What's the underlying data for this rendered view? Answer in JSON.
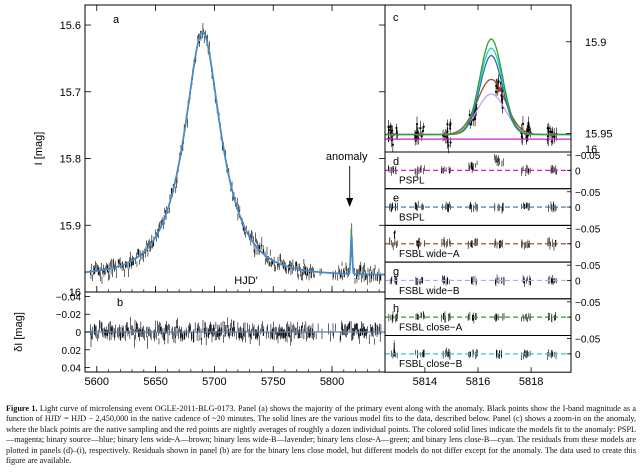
{
  "caption": {
    "label": "Figure 1.",
    "text": "Light curve of microlensing event OGLE-2011-BLG-0173. Panel (a) shows the majority of the primary event along with the anomaly. Black points show the I-band magnitude as a function of HJD′ = HJD − 2,450,000 in the native cadence of ~20 minutes. The solid lines are the various model fits to the data, described below. Panel (c) shows a zoom-in on the anomaly, where the black points are the native sampling and the red points are nightly averages of roughly a dozen individual points. The colored solid lines indicate the models fit to the anomaly: PSPL—magenta; binary source—blue; binary lens wide-A—brown; binary lens wide-B—lavender; binary lens close-A—green; and binary lens close-B—cyan. The residuals from these models are plotted in panels (d)–(i), respectively. Residuals shown in panel (b) are for the binary lens close model, but different models do not differ except for the anomaly. The data used to create this figure are available."
  },
  "colors": {
    "pspl": "#d020d0",
    "bspl": "#2a6fb0",
    "fsbl_wide_a": "#a0522d",
    "fsbl_wide_b": "#c9a0e8",
    "fsbl_close_a": "#2ca02c",
    "fsbl_close_b": "#30c8c8",
    "main_model": "#4a8ac4",
    "nightly": "#e02020"
  },
  "chart_data": [
    {
      "panel": "a",
      "type": "scatter",
      "xlabel": "",
      "ylabel": "I [mag]",
      "xlim": [
        5590,
        5845
      ],
      "ylim": [
        16.0,
        15.57
      ],
      "y_inverted": true,
      "xticks": [
        5600,
        5650,
        5700,
        5750,
        5800
      ],
      "yticks": [
        15.6,
        15.7,
        15.8,
        15.9,
        16
      ],
      "ytick_labels": [
        "15.6",
        "15.7",
        "15.8",
        "15.9",
        "16"
      ],
      "peak": {
        "x": 5690,
        "y": 15.61
      },
      "baseline": 15.975,
      "annotation": {
        "text": "anomaly",
        "x": 5815
      }
    },
    {
      "panel": "b",
      "type": "scatter",
      "xlabel": "HJD′",
      "ylabel": "δI [mag]",
      "xlim": [
        5590,
        5845
      ],
      "ylim": [
        0.045,
        -0.045
      ],
      "xticks": [
        5600,
        5650,
        5700,
        5750,
        5800
      ],
      "xtick_labels": [
        "5600",
        "5650",
        "5700",
        "5750",
        "5800"
      ],
      "yticks": [
        -0.04,
        -0.02,
        0,
        0.02,
        0.04
      ],
      "ytick_labels": [
        "−0.04",
        "−0.02",
        "0",
        "0.02",
        "0.04"
      ]
    },
    {
      "panel": "c",
      "type": "scatter",
      "xlim": [
        5812.5,
        5819.5
      ],
      "ylim": [
        15.96,
        15.88
      ],
      "yticks": [
        15.9,
        15.95
      ],
      "ytick_labels": [
        "15.9",
        "15.95"
      ],
      "models": [
        "pspl",
        "bspl",
        "fsbl_wide_a",
        "fsbl_wide_b",
        "fsbl_close_a",
        "fsbl_close_b"
      ]
    },
    {
      "panels": [
        "d",
        "e",
        "f",
        "g",
        "h",
        "i"
      ],
      "type": "scatter",
      "labels": [
        "PSPL",
        "BSPL",
        "FSBL  wide−A",
        "FSBL  wide−B",
        "FSBL  close−A",
        "FSBL  close−B"
      ],
      "ylim": [
        0.06,
        -0.06
      ],
      "ytick_labels": [
        "−0.05",
        "0"
      ],
      "xticks": [
        5814,
        5816,
        5818
      ],
      "xtick_labels": [
        "5814",
        "5816",
        "5818"
      ]
    }
  ],
  "labels": {
    "panel_a": "a",
    "panel_b": "b",
    "panel_c": "c",
    "right_top_tick": "16",
    "y_axis_a": "I [mag]",
    "y_axis_b": "δI [mag]",
    "x_axis": "HJD′"
  }
}
